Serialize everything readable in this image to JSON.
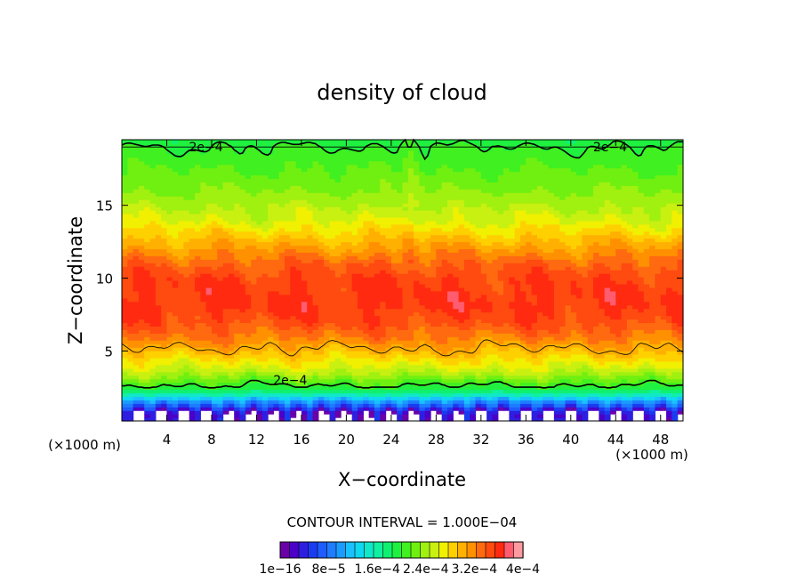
{
  "chart_data": {
    "type": "heatmap",
    "title": "density of cloud",
    "xlabel": "X−coordinate",
    "ylabel": "Z−coordinate",
    "x_unit_left": "(×1000 m)",
    "x_unit_right": "(×1000 m)",
    "xlim": [
      0,
      50
    ],
    "ylim": [
      0.2,
      19.5
    ],
    "xticks": [
      4,
      8,
      12,
      16,
      20,
      24,
      28,
      32,
      36,
      40,
      44,
      48
    ],
    "yticks": [
      5,
      10,
      15
    ],
    "contour_interval_text": "CONTOUR INTERVAL = 1.000E−04",
    "contour_level_label": "2e−4",
    "contour_label_positions": [
      {
        "x": 7.5,
        "z": 19.0
      },
      {
        "x": 43.5,
        "z": 19.0
      },
      {
        "x": 15.0,
        "z": 3.0
      }
    ],
    "colorbar": {
      "min": 1e-16,
      "max": 0.0004,
      "n_colors": 26,
      "tick_labels": [
        "1e−16",
        "8e−5",
        "1.6e−4",
        "2.4e−4",
        "3.2e−4",
        "4e−4"
      ],
      "tick_values": [
        0,
        8e-05,
        0.00016,
        0.00024,
        0.00032,
        0.0004
      ],
      "palette": [
        "#6a00a8",
        "#4b00c8",
        "#2e1fe0",
        "#1a3cf0",
        "#1e5cff",
        "#1e7cff",
        "#1a9cff",
        "#1ac0ff",
        "#10d8f0",
        "#10e8c8",
        "#10f0a0",
        "#10f070",
        "#20f040",
        "#40f020",
        "#70f010",
        "#a0f010",
        "#c8f010",
        "#f0f000",
        "#ffd000",
        "#ffb000",
        "#ff9000",
        "#ff6a10",
        "#ff4a10",
        "#ff2a10",
        "#ff5c70",
        "#ff9aa0"
      ]
    },
    "profile": {
      "description_levels_z": [
        0.8,
        1.2,
        1.6,
        2.0,
        2.4,
        2.8,
        3.2,
        3.6,
        4.2,
        5.0,
        6.0,
        7.0,
        8.0,
        9.0,
        10.0,
        11.0,
        12.0,
        13.0,
        14.0,
        15.0,
        16.0,
        17.0,
        18.0,
        19.0,
        19.5
      ],
      "density_e4": [
        0.15,
        0.6,
        1.0,
        1.5,
        1.9,
        2.1,
        2.3,
        2.5,
        2.7,
        2.95,
        3.25,
        3.45,
        3.55,
        3.55,
        3.5,
        3.35,
        3.1,
        2.85,
        2.6,
        2.45,
        2.3,
        2.2,
        2.1,
        2.0,
        1.9
      ]
    }
  }
}
